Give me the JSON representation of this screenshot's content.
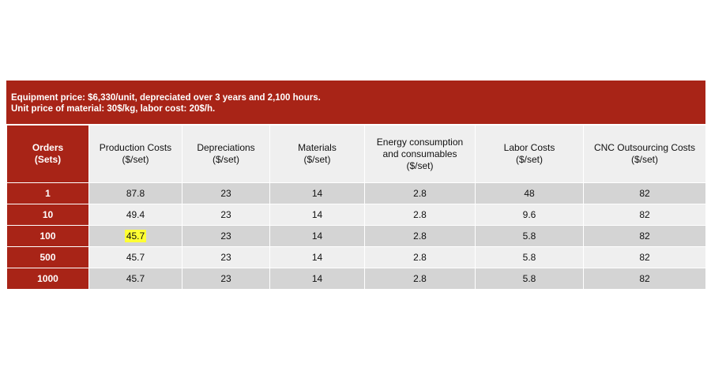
{
  "banner": {
    "line1": "Equipment price: $6,330/unit, depreciated over 3 years and 2,100 hours.",
    "line2": "Unit price of material: 30$/kg, labor cost: 20$/h."
  },
  "table": {
    "headers": [
      {
        "line1": "Orders",
        "line2": "(Sets)"
      },
      {
        "line1": "Production Costs",
        "line2": "($/set)"
      },
      {
        "line1": "Depreciations",
        "line2": "($/set)"
      },
      {
        "line1": "Materials",
        "line2": "($/set)"
      },
      {
        "line1": "Energy consumption",
        "line2": "and consumables",
        "line3": "($/set)"
      },
      {
        "line1": "Labor Costs",
        "line2": "($/set)"
      },
      {
        "line1": "CNC Outsourcing Costs",
        "line2": "($/set)"
      }
    ],
    "rows": [
      [
        "1",
        "87.8",
        "23",
        "14",
        "2.8",
        "48",
        "82"
      ],
      [
        "10",
        "49.4",
        "23",
        "14",
        "2.8",
        "9.6",
        "82"
      ],
      [
        "100",
        "45.7",
        "23",
        "14",
        "2.8",
        "5.8",
        "82"
      ],
      [
        "500",
        "45.7",
        "23",
        "14",
        "2.8",
        "5.8",
        "82"
      ],
      [
        "1000",
        "45.7",
        "23",
        "14",
        "2.8",
        "5.8",
        "82"
      ]
    ],
    "highlight_color": "#ffff33",
    "header_color": "#a82417"
  }
}
